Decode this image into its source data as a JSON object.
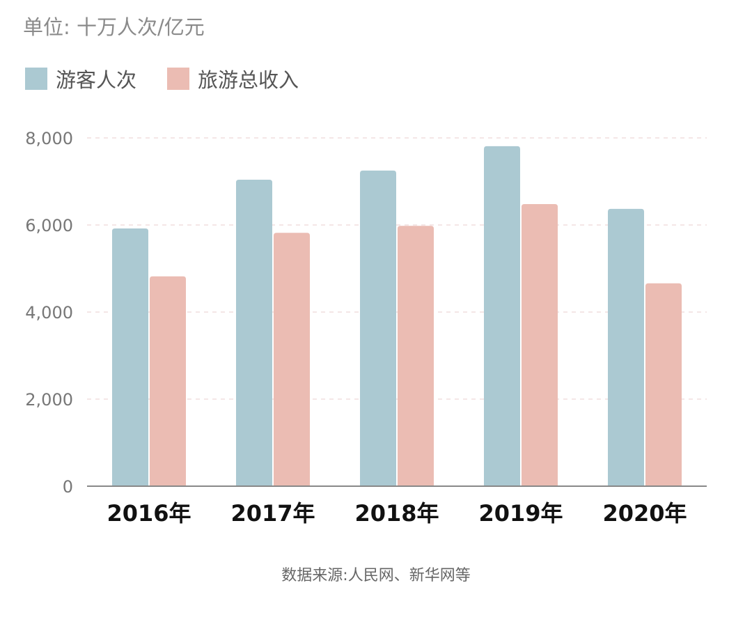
{
  "chart_data": {
    "type": "bar",
    "title": "",
    "unit_label": "单位: 十万人次/亿元",
    "categories": [
      "2016年",
      "2017年",
      "2018年",
      "2019年",
      "2020年"
    ],
    "series": [
      {
        "name": "游客人次",
        "color": "#abc9d2",
        "values": [
          5920,
          7040,
          7250,
          7810,
          6370
        ]
      },
      {
        "name": "旅游总收入",
        "color": "#ebbcb3",
        "values": [
          4820,
          5820,
          5980,
          6480,
          4660
        ]
      }
    ],
    "yticks": [
      0,
      2000,
      4000,
      6000,
      8000
    ],
    "ytick_labels": [
      "0",
      "2,000",
      "4,000",
      "6,000",
      "8,000"
    ],
    "ylim": [
      0,
      8000
    ],
    "xlabel": "",
    "ylabel": "",
    "grid": true,
    "legend_position": "top-left",
    "source": "数据来源:人民网、新华网等"
  }
}
